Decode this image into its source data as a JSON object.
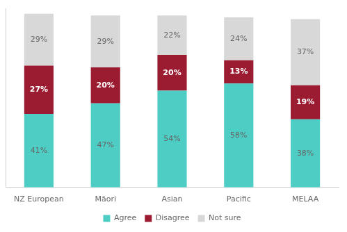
{
  "chart_data": {
    "type": "bar",
    "stacked": true,
    "categories": [
      "NZ European",
      "Māori",
      "Asian",
      "Pacific",
      "MELAA"
    ],
    "series": [
      {
        "name": "Agree",
        "color": "#4ECDC4",
        "values": [
          41,
          47,
          54,
          58,
          38
        ],
        "value_labels": [
          "41%",
          "47%",
          "54%",
          "58%",
          "38%"
        ]
      },
      {
        "name": "Disagree",
        "color": "#9B1B30",
        "values": [
          27,
          20,
          20,
          13,
          19
        ],
        "value_labels": [
          "27%",
          "20%",
          "20%",
          "13%",
          "19%"
        ]
      },
      {
        "name": "Not sure",
        "color": "#D8D8D8",
        "values": [
          29,
          29,
          22,
          24,
          37
        ],
        "value_labels": [
          "29%",
          "29%",
          "22%",
          "24%",
          "37%"
        ]
      }
    ],
    "ylim": [
      0,
      100
    ],
    "grid": false,
    "legend": "bottom",
    "data_labels": true,
    "tick_labels": "x"
  }
}
